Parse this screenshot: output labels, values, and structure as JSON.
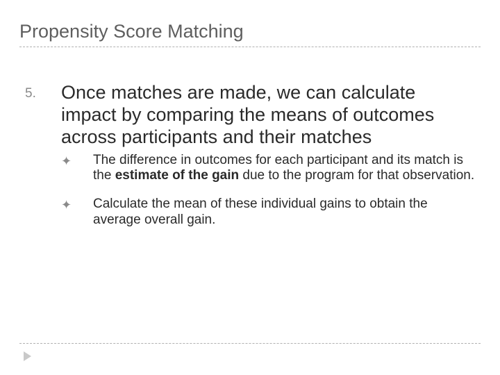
{
  "title": "Propensity Score Matching",
  "list_number": "5.",
  "main_point": "Once matches are made, we can calculate impact by comparing the means of outcomes across participants and their matches",
  "sub1_prefix": "The difference in outcomes  for each participant and its match is the ",
  "sub1_bold": "estimate of the gain",
  "sub1_suffix": " due to the program for that observation.",
  "sub2": "Calculate the mean of these individual gains to obtain the average overall gain.",
  "bullet_glyph": "✦",
  "colors": {
    "title_color": "#5e5e5e",
    "body_color": "#2a2a2a",
    "muted": "#8a8a8a",
    "divider": "#b0b0b0",
    "arrow": "#c9c9c9",
    "background": "#ffffff"
  },
  "typography": {
    "title_fontsize": 27,
    "main_fontsize": 27,
    "sub_fontsize": 19,
    "number_fontsize": 19
  }
}
